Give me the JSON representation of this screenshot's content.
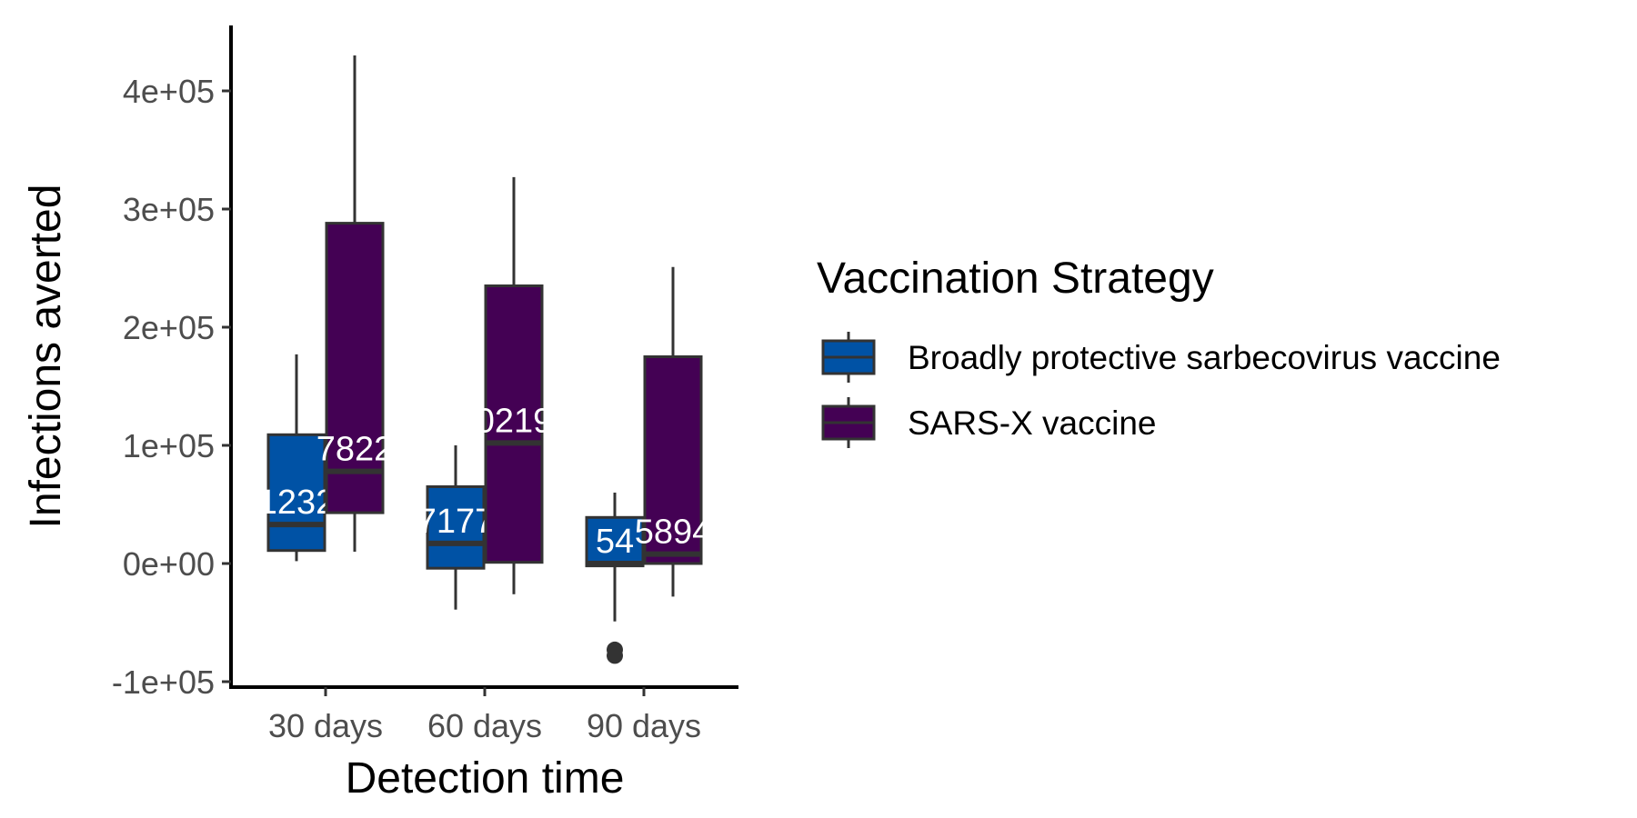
{
  "chart_data": {
    "type": "boxplot",
    "xlabel": "Detection time",
    "ylabel": "Infections averted",
    "categories": [
      "30 days",
      "60 days",
      "90 days"
    ],
    "ylim": [
      -100000,
      450000
    ],
    "yticks": [
      -100000,
      0,
      100000,
      200000,
      300000,
      400000
    ],
    "ytick_labels": [
      "-1e+05",
      "0e+00",
      "1e+05",
      "2e+05",
      "3e+05",
      "4e+05"
    ],
    "grid": false,
    "legend": {
      "title": "Vaccination Strategy",
      "position": "right"
    },
    "series": [
      {
        "name": "Broadly protective sarbecovirus vaccine",
        "color": "#0052a5",
        "boxes": [
          {
            "category": "30 days",
            "whisker_low": 2000,
            "q1": 11000,
            "median": 33000,
            "q3": 109000,
            "whisker_high": 177000,
            "outliers": [],
            "label": "1232"
          },
          {
            "category": "60 days",
            "whisker_low": -39000,
            "q1": -4000,
            "median": 17000,
            "q3": 65000,
            "whisker_high": 100000,
            "outliers": [],
            "label": "7177"
          },
          {
            "category": "90 days",
            "whisker_low": -49000,
            "q1": -2000,
            "median": 0,
            "q3": 39000,
            "whisker_high": 60000,
            "outliers": [
              -73000,
              -78000
            ],
            "label": "54"
          }
        ]
      },
      {
        "name": "SARS-X vaccine",
        "color": "#440154",
        "boxes": [
          {
            "category": "30 days",
            "whisker_low": 10000,
            "q1": 43000,
            "median": 78000,
            "q3": 288000,
            "whisker_high": 430000,
            "outliers": [],
            "label": "7822"
          },
          {
            "category": "60 days",
            "whisker_low": -26000,
            "q1": 1000,
            "median": 102000,
            "q3": 235000,
            "whisker_high": 327000,
            "outliers": [],
            "label": "0219"
          },
          {
            "category": "90 days",
            "whisker_low": -28000,
            "q1": 0,
            "median": 8000,
            "q3": 175000,
            "whisker_high": 251000,
            "outliers": [],
            "label": "5894"
          }
        ]
      }
    ]
  }
}
